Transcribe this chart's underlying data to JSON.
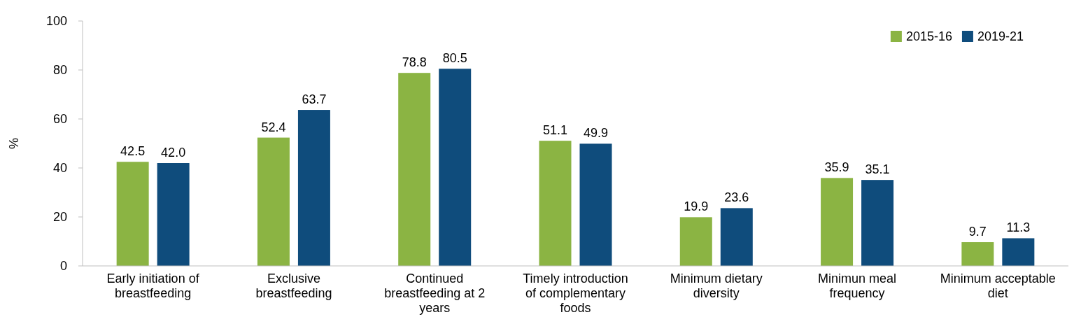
{
  "chart_data": {
    "type": "bar",
    "ylabel": "%",
    "categories": [
      "Early initiation of breastfeeding",
      "Exclusive breastfeeding",
      "Continued breastfeeding at 2 years",
      "Timely introduction of complementary foods",
      "Minimum dietary diversity",
      "Minimun meal frequency",
      "Minimum acceptable diet"
    ],
    "series": [
      {
        "name": "2015-16",
        "color": "#8bb443",
        "values": [
          42.5,
          52.4,
          78.8,
          51.1,
          19.9,
          35.9,
          9.7
        ],
        "value_labels": [
          "42.5",
          "52.4",
          "78.8",
          "51.1",
          "19.9",
          "35.9",
          "9.7"
        ]
      },
      {
        "name": "2019-21",
        "color": "#0f4c7c",
        "values": [
          42.0,
          63.7,
          80.5,
          49.9,
          23.6,
          35.1,
          11.3
        ],
        "value_labels": [
          "42.0",
          "63.7",
          "80.5",
          "49.9",
          "23.6",
          "35.1",
          "11.3"
        ]
      }
    ],
    "ylim": [
      0,
      100
    ],
    "yticks": [
      0,
      20,
      40,
      60,
      80,
      100
    ],
    "grid": false,
    "legend": "top right"
  }
}
